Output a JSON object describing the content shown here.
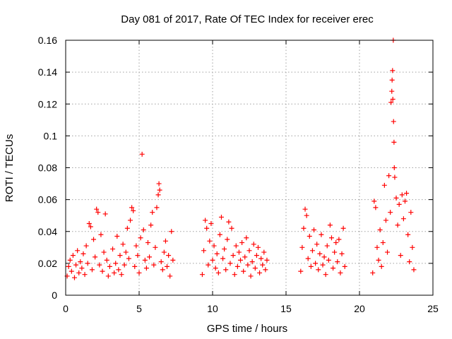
{
  "chart_data": {
    "type": "scatter",
    "title": "Day 081 of 2017, Rate Of TEC Index for receiver erec",
    "xlabel": "GPS time / hours",
    "ylabel": "ROTI / TECUs",
    "xlim": [
      0,
      25
    ],
    "ylim": [
      0,
      0.16
    ],
    "xticks": [
      0,
      5,
      10,
      15,
      20,
      25
    ],
    "xtick_labels": [
      "0",
      "5",
      "10",
      "15",
      "20",
      "25"
    ],
    "yticks": [
      0,
      0.02,
      0.04,
      0.06,
      0.08,
      0.1,
      0.12,
      0.14,
      0.16
    ],
    "ytick_labels": [
      "0",
      "0.02",
      "0.04",
      "0.06",
      "0.08",
      "0.1",
      "0.12",
      "0.14",
      "0.16"
    ],
    "grid": true,
    "marker": "+",
    "color": "#ff0000",
    "series": [
      {
        "name": "ROTI",
        "points": [
          [
            0.1,
            0.012
          ],
          [
            0.2,
            0.018
          ],
          [
            0.3,
            0.022
          ],
          [
            0.4,
            0.015
          ],
          [
            0.5,
            0.025
          ],
          [
            0.6,
            0.011
          ],
          [
            0.7,
            0.019
          ],
          [
            0.8,
            0.028
          ],
          [
            0.9,
            0.014
          ],
          [
            1.0,
            0.021
          ],
          [
            1.1,
            0.017
          ],
          [
            1.2,
            0.026
          ],
          [
            1.3,
            0.013
          ],
          [
            1.4,
            0.031
          ],
          [
            1.5,
            0.02
          ],
          [
            1.6,
            0.045
          ],
          [
            1.7,
            0.043
          ],
          [
            1.8,
            0.016
          ],
          [
            1.9,
            0.035
          ],
          [
            2.0,
            0.024
          ],
          [
            2.1,
            0.054
          ],
          [
            2.2,
            0.052
          ],
          [
            2.3,
            0.019
          ],
          [
            2.4,
            0.038
          ],
          [
            2.5,
            0.015
          ],
          [
            2.6,
            0.027
          ],
          [
            2.7,
            0.051
          ],
          [
            2.8,
            0.022
          ],
          [
            2.9,
            0.012
          ],
          [
            3.0,
            0.018
          ],
          [
            3.2,
            0.029
          ],
          [
            3.3,
            0.014
          ],
          [
            3.4,
            0.02
          ],
          [
            3.5,
            0.037
          ],
          [
            3.6,
            0.016
          ],
          [
            3.7,
            0.025
          ],
          [
            3.8,
            0.013
          ],
          [
            3.9,
            0.032
          ],
          [
            4.0,
            0.019
          ],
          [
            4.1,
            0.027
          ],
          [
            4.2,
            0.042
          ],
          [
            4.3,
            0.023
          ],
          [
            4.4,
            0.047
          ],
          [
            4.5,
            0.055
          ],
          [
            4.6,
            0.053
          ],
          [
            4.7,
            0.018
          ],
          [
            4.8,
            0.031
          ],
          [
            4.9,
            0.025
          ],
          [
            5.0,
            0.014
          ],
          [
            5.1,
            0.036
          ],
          [
            5.2,
            0.0885
          ],
          [
            5.3,
            0.041
          ],
          [
            5.4,
            0.022
          ],
          [
            5.5,
            0.017
          ],
          [
            5.6,
            0.033
          ],
          [
            5.7,
            0.024
          ],
          [
            5.8,
            0.044
          ],
          [
            5.9,
            0.052
          ],
          [
            6.0,
            0.019
          ],
          [
            6.1,
            0.03
          ],
          [
            6.2,
            0.055
          ],
          [
            6.3,
            0.063
          ],
          [
            6.35,
            0.07
          ],
          [
            6.4,
            0.066
          ],
          [
            6.5,
            0.021
          ],
          [
            6.6,
            0.016
          ],
          [
            6.7,
            0.027
          ],
          [
            6.8,
            0.034
          ],
          [
            6.9,
            0.018
          ],
          [
            7.0,
            0.025
          ],
          [
            7.1,
            0.012
          ],
          [
            7.2,
            0.04
          ],
          [
            7.3,
            0.022
          ],
          [
            9.3,
            0.013
          ],
          [
            9.4,
            0.028
          ],
          [
            9.5,
            0.047
          ],
          [
            9.6,
            0.042
          ],
          [
            9.7,
            0.019
          ],
          [
            9.8,
            0.034
          ],
          [
            9.9,
            0.045
          ],
          [
            10.0,
            0.022
          ],
          [
            10.1,
            0.031
          ],
          [
            10.2,
            0.017
          ],
          [
            10.3,
            0.026
          ],
          [
            10.4,
            0.014
          ],
          [
            10.5,
            0.038
          ],
          [
            10.6,
            0.049
          ],
          [
            10.7,
            0.023
          ],
          [
            10.8,
            0.029
          ],
          [
            10.9,
            0.016
          ],
          [
            11.0,
            0.035
          ],
          [
            11.1,
            0.046
          ],
          [
            11.2,
            0.02
          ],
          [
            11.3,
            0.042
          ],
          [
            11.4,
            0.025
          ],
          [
            11.5,
            0.013
          ],
          [
            11.6,
            0.031
          ],
          [
            11.7,
            0.018
          ],
          [
            11.8,
            0.027
          ],
          [
            11.9,
            0.022
          ],
          [
            12.0,
            0.033
          ],
          [
            12.1,
            0.015
          ],
          [
            12.2,
            0.024
          ],
          [
            12.3,
            0.036
          ],
          [
            12.4,
            0.019
          ],
          [
            12.5,
            0.028
          ],
          [
            12.6,
            0.012
          ],
          [
            12.7,
            0.021
          ],
          [
            12.8,
            0.032
          ],
          [
            12.9,
            0.017
          ],
          [
            13.0,
            0.025
          ],
          [
            13.1,
            0.03
          ],
          [
            13.2,
            0.014
          ],
          [
            13.3,
            0.023
          ],
          [
            13.4,
            0.019
          ],
          [
            13.5,
            0.027
          ],
          [
            13.6,
            0.016
          ],
          [
            13.7,
            0.022
          ],
          [
            16.0,
            0.015
          ],
          [
            16.1,
            0.03
          ],
          [
            16.2,
            0.042
          ],
          [
            16.3,
            0.054
          ],
          [
            16.4,
            0.05
          ],
          [
            16.5,
            0.023
          ],
          [
            16.6,
            0.037
          ],
          [
            16.7,
            0.018
          ],
          [
            16.8,
            0.028
          ],
          [
            16.9,
            0.041
          ],
          [
            17.0,
            0.02
          ],
          [
            17.1,
            0.032
          ],
          [
            17.2,
            0.016
          ],
          [
            17.3,
            0.026
          ],
          [
            17.4,
            0.038
          ],
          [
            17.5,
            0.019
          ],
          [
            17.6,
            0.024
          ],
          [
            17.7,
            0.013
          ],
          [
            17.8,
            0.031
          ],
          [
            17.9,
            0.022
          ],
          [
            18.0,
            0.044
          ],
          [
            18.1,
            0.036
          ],
          [
            18.2,
            0.017
          ],
          [
            18.3,
            0.027
          ],
          [
            18.4,
            0.033
          ],
          [
            18.5,
            0.021
          ],
          [
            18.6,
            0.035
          ],
          [
            18.7,
            0.014
          ],
          [
            18.8,
            0.026
          ],
          [
            18.9,
            0.042
          ],
          [
            19.0,
            0.018
          ],
          [
            20.9,
            0.014
          ],
          [
            21.0,
            0.059
          ],
          [
            21.1,
            0.055
          ],
          [
            21.2,
            0.03
          ],
          [
            21.3,
            0.022
          ],
          [
            21.4,
            0.041
          ],
          [
            21.5,
            0.018
          ],
          [
            21.6,
            0.033
          ],
          [
            21.7,
            0.069
          ],
          [
            21.8,
            0.047
          ],
          [
            21.9,
            0.027
          ],
          [
            22.0,
            0.075
          ],
          [
            22.1,
            0.052
          ],
          [
            22.15,
            0.121
          ],
          [
            22.2,
            0.128
          ],
          [
            22.22,
            0.135
          ],
          [
            22.25,
            0.141
          ],
          [
            22.27,
            0.123
          ],
          [
            22.3,
            0.16
          ],
          [
            22.32,
            0.109
          ],
          [
            22.35,
            0.096
          ],
          [
            22.37,
            0.08
          ],
          [
            22.4,
            0.074
          ],
          [
            22.5,
            0.061
          ],
          [
            22.6,
            0.044
          ],
          [
            22.7,
            0.057
          ],
          [
            22.8,
            0.025
          ],
          [
            22.9,
            0.063
          ],
          [
            23.0,
            0.048
          ],
          [
            23.1,
            0.059
          ],
          [
            23.2,
            0.064
          ],
          [
            23.3,
            0.038
          ],
          [
            23.4,
            0.021
          ],
          [
            23.5,
            0.052
          ],
          [
            23.6,
            0.03
          ],
          [
            23.7,
            0.016
          ]
        ]
      }
    ]
  }
}
